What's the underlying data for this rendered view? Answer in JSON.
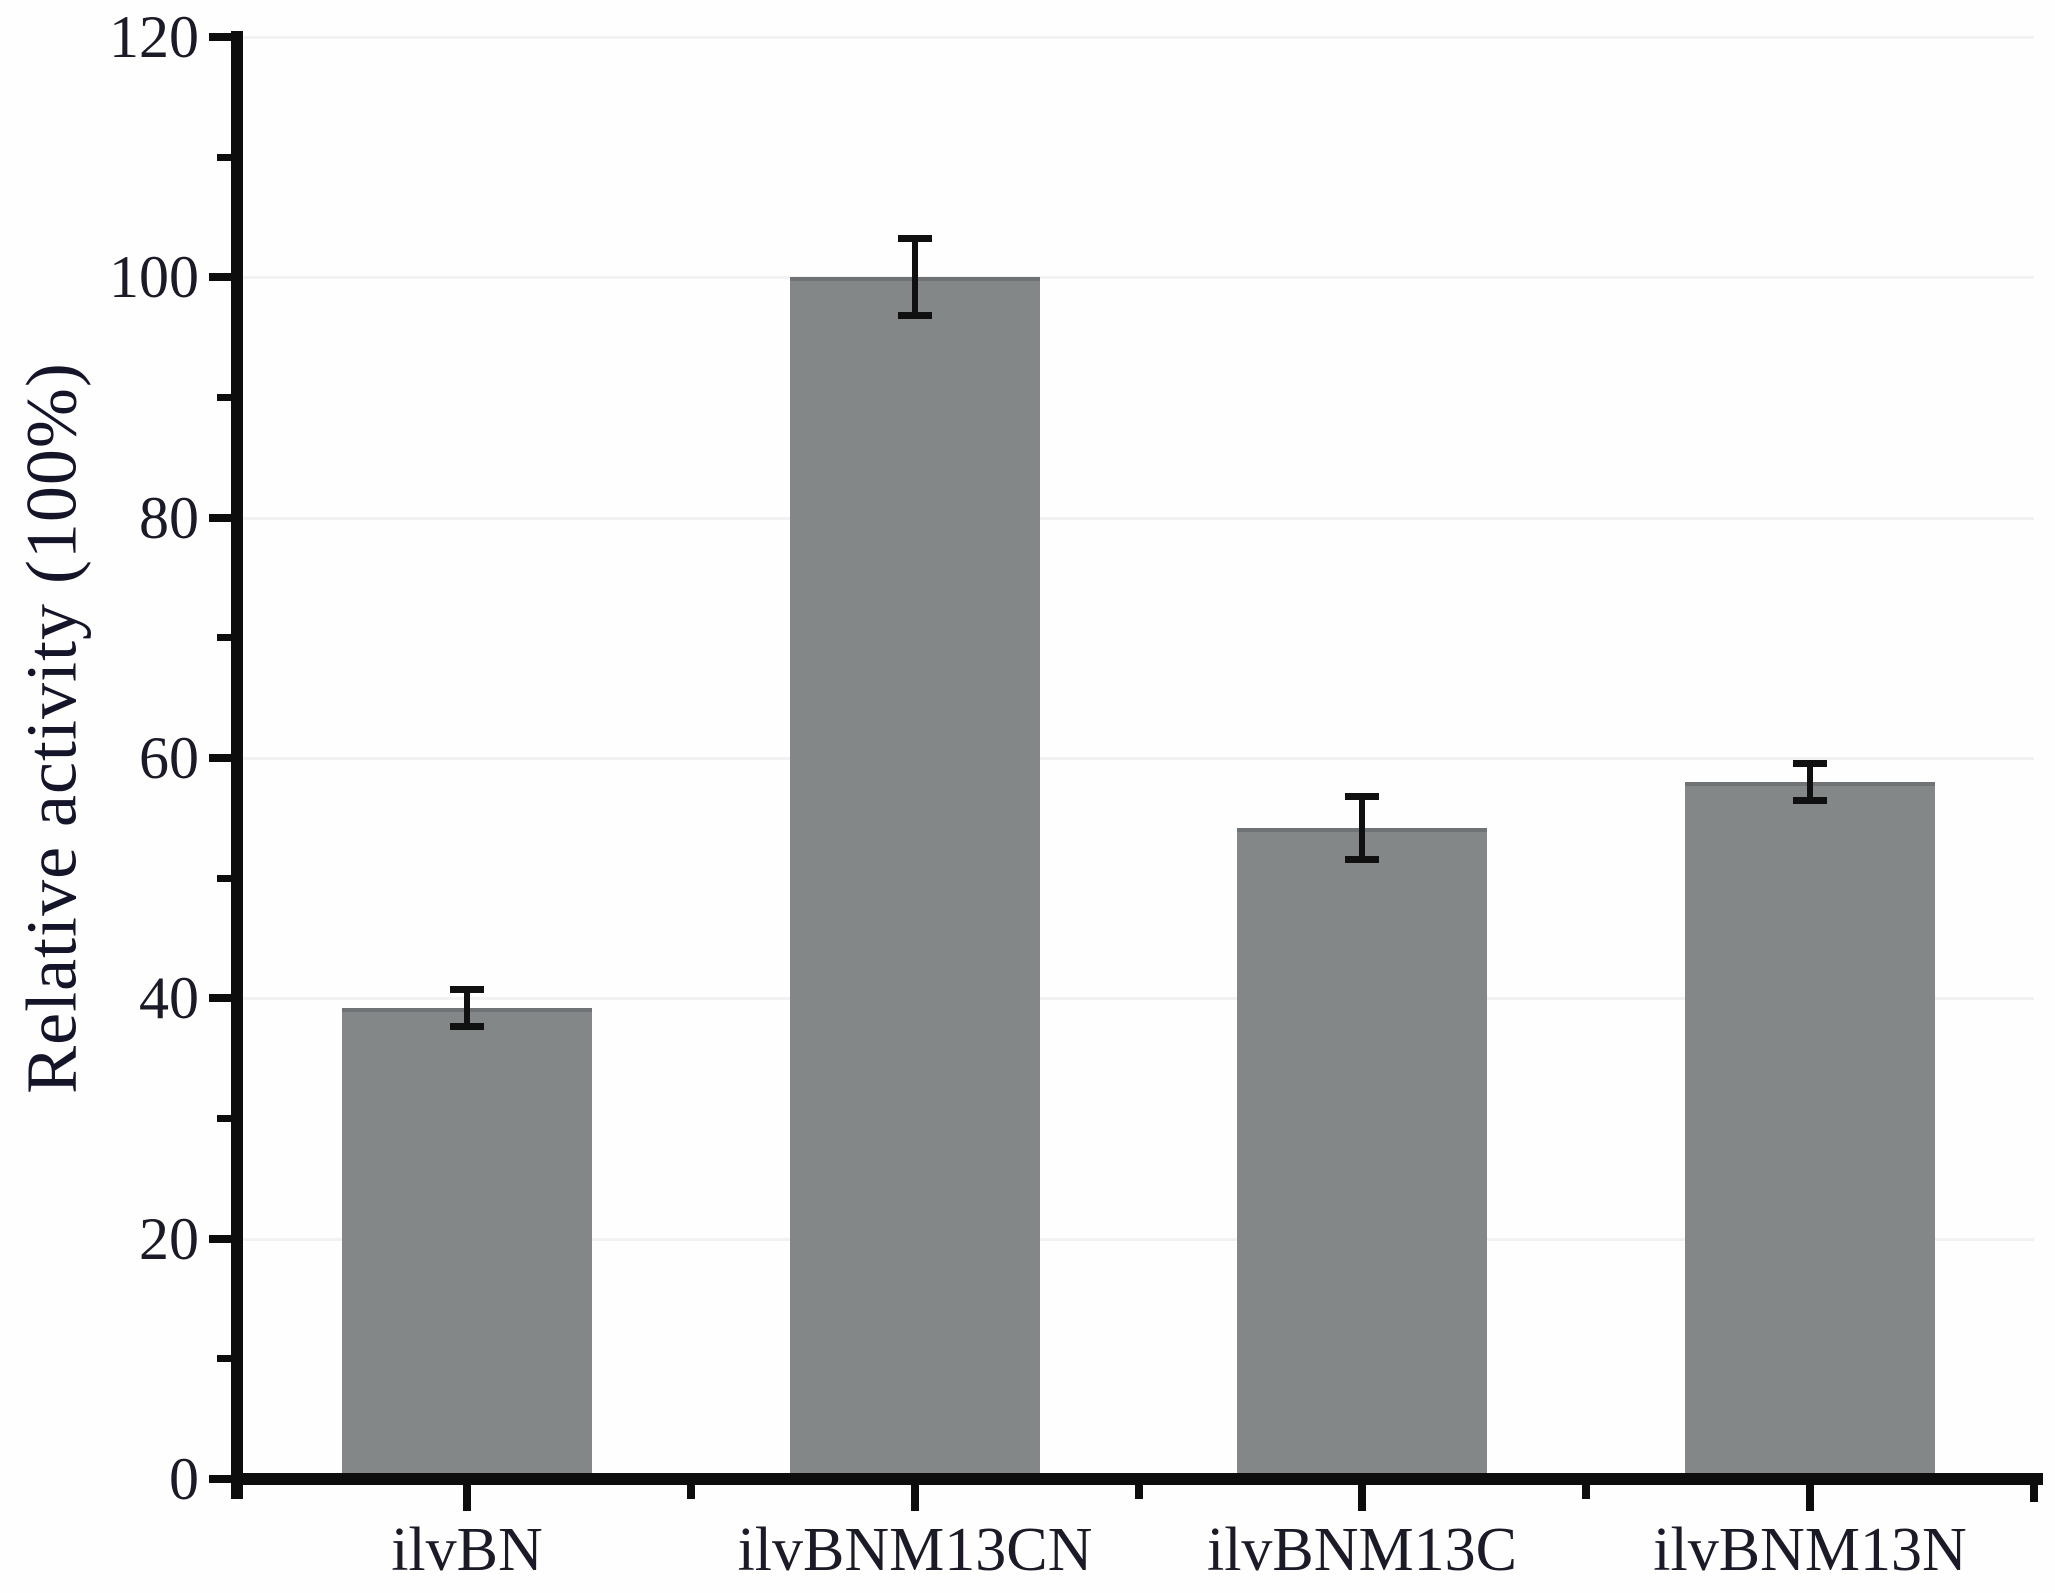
{
  "figure": {
    "background": "#fefefe"
  },
  "chart_data": {
    "type": "bar",
    "title": "",
    "categories": [
      "ilvBN",
      "ilvBNM13CN",
      "ilvBNM13C",
      "ilvBNM13N"
    ],
    "values": [
      39.2,
      100,
      54.2,
      58
    ],
    "errors": [
      1.8,
      3.5,
      2.9,
      1.8
    ],
    "xlabel": "",
    "ylabel": "Relative activity (100%)",
    "ylim": [
      0,
      120
    ],
    "ytick_step": 20,
    "yminor_step": 10,
    "ytick_labels": [
      "0",
      "20",
      "40",
      "60",
      "80",
      "100",
      "120"
    ],
    "grid": false,
    "legend": null,
    "bar_color": "#848788",
    "bar_edge_color": "#707375",
    "axis_color": "#0d0d0d",
    "error_bar_color": "#101010",
    "text_color": "#1b1b28"
  }
}
